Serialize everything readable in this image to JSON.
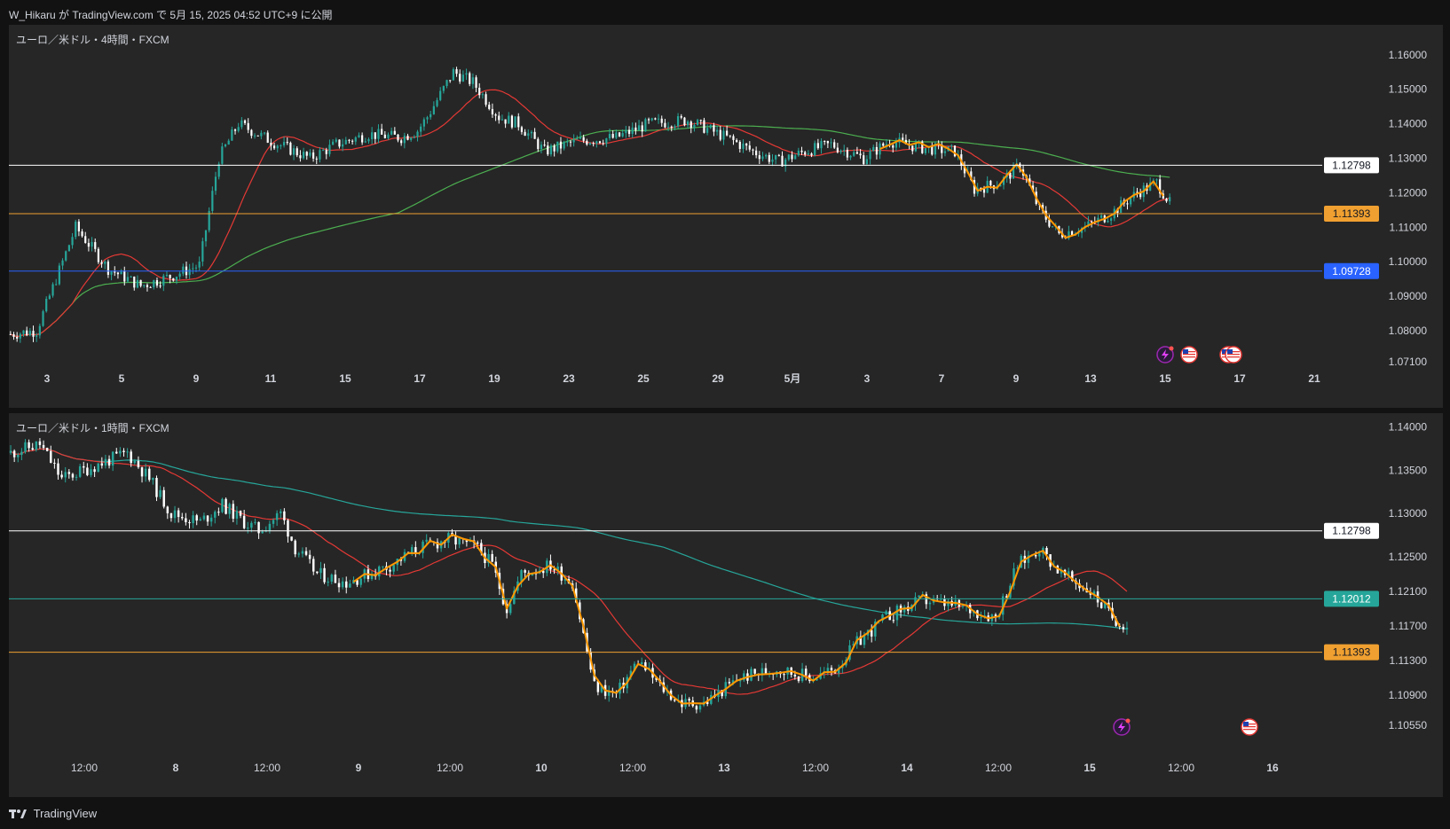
{
  "header": {
    "publish_text": "W_Hikaru が TradingView.com で 5月 15, 2025 04:52 UTC+9 に公開"
  },
  "footer": {
    "brand": "TradingView"
  },
  "colors": {
    "up": "#26a69a",
    "down": "#ffffff",
    "ma_fast": "#e53935",
    "ma_slow": "#4caf50",
    "ma_slow2": "#26a69a",
    "swing": "#ff9800",
    "white_line": "#ffffff",
    "orange_line": "#f0a030",
    "blue_line": "#2962ff",
    "teal_line": "#26a69a"
  },
  "pane1": {
    "title": "ユーロ／米ドル・4時間・FXCM",
    "price_labels": [
      "1.16000",
      "1.15000",
      "1.14000",
      "1.13000",
      "1.12000",
      "1.11000",
      "1.10000",
      "1.09000",
      "1.08000",
      "1.07100"
    ],
    "time_labels": [
      "3",
      "5",
      "9",
      "11",
      "15",
      "17",
      "19",
      "23",
      "25",
      "29",
      "5月",
      "3",
      "7",
      "9",
      "13",
      "15",
      "17",
      "21"
    ],
    "levels": [
      {
        "value": "1.12798",
        "kind": "white"
      },
      {
        "value": "1.11393",
        "kind": "orange"
      },
      {
        "value": "1.09728",
        "kind": "blue"
      }
    ],
    "event_icons": [
      "flash-event-icon",
      "us-flag-icon",
      "us-flag-icon",
      "us-flag-icon"
    ]
  },
  "pane2": {
    "title": "ユーロ／米ドル・1時間・FXCM",
    "price_labels": [
      "1.14000",
      "1.13500",
      "1.13000",
      "1.12500",
      "1.12100",
      "1.11700",
      "1.11300",
      "1.10900",
      "1.10550"
    ],
    "time_labels": [
      "12:00",
      "8",
      "12:00",
      "9",
      "12:00",
      "10",
      "12:00",
      "13",
      "12:00",
      "14",
      "12:00",
      "15",
      "12:00",
      "16"
    ],
    "levels": [
      {
        "value": "1.12798",
        "kind": "white"
      },
      {
        "value": "1.12012",
        "kind": "teal"
      },
      {
        "value": "1.11393",
        "kind": "orange"
      }
    ],
    "event_icons": [
      "flash-event-icon",
      "us-flag-icon"
    ]
  },
  "chart_data": [
    {
      "type": "candlestick",
      "title": "ユーロ／米ドル・4時間・FXCM",
      "x": [
        "3",
        "5",
        "9",
        "11",
        "15",
        "17",
        "19",
        "23",
        "25",
        "29",
        "5月",
        "3",
        "7",
        "9",
        "13",
        "15"
      ],
      "close_approx": [
        1.08,
        1.105,
        1.096,
        1.135,
        1.134,
        1.138,
        1.154,
        1.138,
        1.135,
        1.138,
        1.131,
        1.13,
        1.132,
        1.123,
        1.108,
        1.119
      ],
      "ylim": [
        1.071,
        1.165
      ],
      "horizontal_levels": [
        1.12798,
        1.11393,
        1.09728
      ]
    },
    {
      "type": "candlestick",
      "title": "ユーロ／米ドル・1時間・FXCM",
      "x": [
        "12:00",
        "8",
        "12:00",
        "9",
        "12:00",
        "10",
        "12:00",
        "13",
        "12:00",
        "14",
        "12:00",
        "15"
      ],
      "close_approx": [
        1.134,
        1.133,
        1.129,
        1.123,
        1.124,
        1.127,
        1.124,
        1.108,
        1.111,
        1.115,
        1.119,
        1.117
      ],
      "ylim": [
        1.104,
        1.142
      ],
      "horizontal_levels": [
        1.12798,
        1.12012,
        1.11393
      ]
    }
  ]
}
